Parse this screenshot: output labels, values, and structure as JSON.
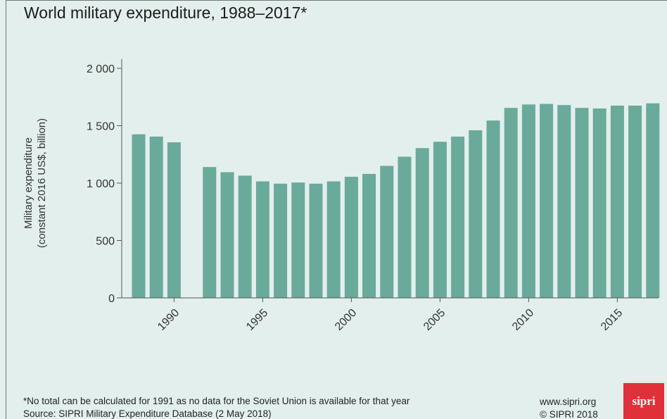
{
  "title": "World military expenditure, 1988–2017*",
  "footnote": "*No total can be calculated for 1991 as no data for the Soviet Union is available for that year",
  "source": "Source: SIPRI Military Expenditure Database (2 May 2018)",
  "site_url": "www.sipri.org",
  "copyright": "© SIPRI 2018",
  "logo_text": "sipri",
  "colors": {
    "background": "#e3efec",
    "bar": "#6aaa9a",
    "axis": "#555555",
    "logo": "#e0303a"
  },
  "chart_data": {
    "type": "bar",
    "title": "World military expenditure, 1988–2017*",
    "xlabel": "",
    "ylabel": [
      "Military expenditure",
      "(constant 2016 US$, billion)"
    ],
    "ylim": [
      0,
      2000
    ],
    "yticks": [
      0,
      500,
      1000,
      1500,
      2000
    ],
    "ytick_labels": [
      "0",
      "500",
      "1 000",
      "1 500",
      "2 000"
    ],
    "xlim": [
      1988,
      2017
    ],
    "xticks": [
      1990,
      1995,
      2000,
      2005,
      2010,
      2015
    ],
    "xtick_labels": [
      "1990",
      "1995",
      "2000",
      "2005",
      "2010",
      "2015"
    ],
    "grid": false,
    "categories": [
      1988,
      1989,
      1990,
      1991,
      1992,
      1993,
      1994,
      1995,
      1996,
      1997,
      1998,
      1999,
      2000,
      2001,
      2002,
      2003,
      2004,
      2005,
      2006,
      2007,
      2008,
      2009,
      2010,
      2011,
      2012,
      2013,
      2014,
      2015,
      2016,
      2017
    ],
    "values": [
      1425,
      1405,
      1355,
      null,
      1140,
      1095,
      1065,
      1015,
      995,
      1005,
      995,
      1015,
      1055,
      1080,
      1150,
      1230,
      1305,
      1360,
      1405,
      1460,
      1545,
      1655,
      1685,
      1690,
      1680,
      1655,
      1650,
      1675,
      1675,
      1695
    ]
  }
}
